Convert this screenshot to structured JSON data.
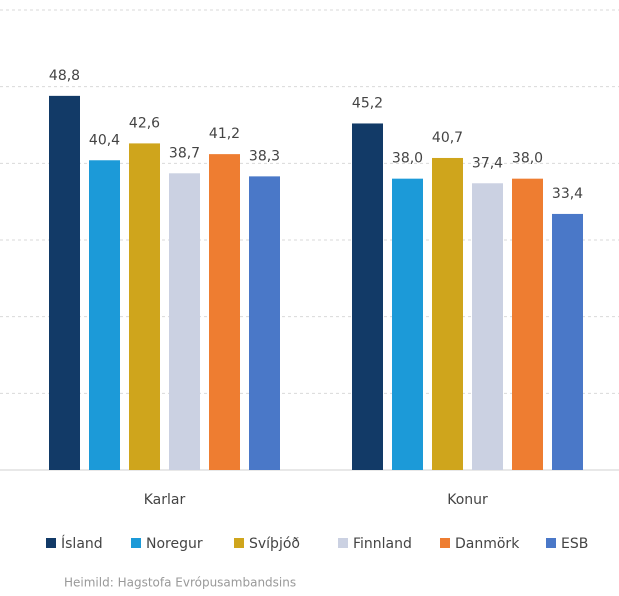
{
  "chart_data": {
    "type": "bar",
    "categories": [
      "Karlar",
      "Konur"
    ],
    "series": [
      {
        "name": "Ísland",
        "color": "#123a67",
        "values": [
          48.8,
          45.2
        ],
        "value_labels": [
          "48,8",
          "45,2"
        ]
      },
      {
        "name": "Noregur",
        "color": "#1c9ad8",
        "values": [
          40.4,
          38.0
        ],
        "value_labels": [
          "40,4",
          "38,0"
        ]
      },
      {
        "name": "Svíþjóð",
        "color": "#cfa51c",
        "values": [
          42.6,
          40.7
        ],
        "value_labels": [
          "42,6",
          "40,7"
        ]
      },
      {
        "name": "Finnland",
        "color": "#cbd1e2",
        "values": [
          38.7,
          37.4
        ],
        "value_labels": [
          "38,7",
          "37,4"
        ]
      },
      {
        "name": "Danmörk",
        "color": "#ee7d31",
        "values": [
          41.2,
          38.0
        ],
        "value_labels": [
          "41,2",
          "38,0"
        ]
      },
      {
        "name": "ESB",
        "color": "#4a78c8",
        "values": [
          38.3,
          33.4
        ],
        "value_labels": [
          "38,3",
          "33,4"
        ]
      }
    ],
    "ylim": [
      0,
      60
    ],
    "yticks": [
      0,
      10,
      20,
      30,
      40,
      50,
      60
    ],
    "grid": true,
    "source": "Heimild: Hagstofa Evrópusambandsins"
  }
}
